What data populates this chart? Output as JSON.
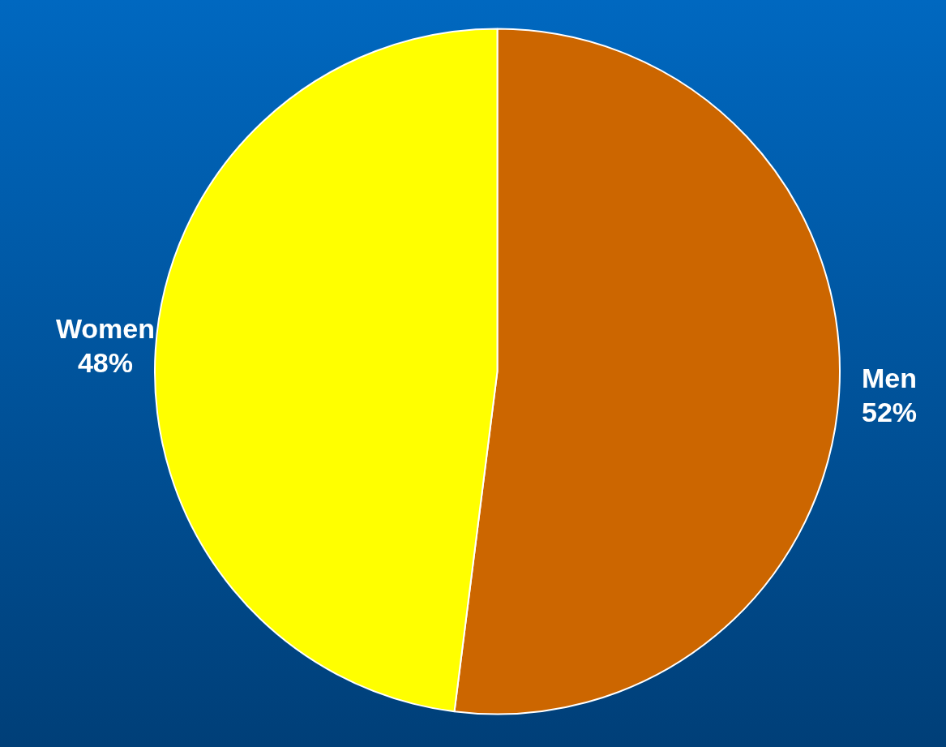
{
  "chart_data": {
    "type": "pie",
    "categories": [
      "Men",
      "Women"
    ],
    "values": [
      52,
      48
    ],
    "colors": [
      "#cc6600",
      "#ffff00"
    ],
    "value_labels": [
      "52%",
      "48%"
    ],
    "legend": false
  }
}
